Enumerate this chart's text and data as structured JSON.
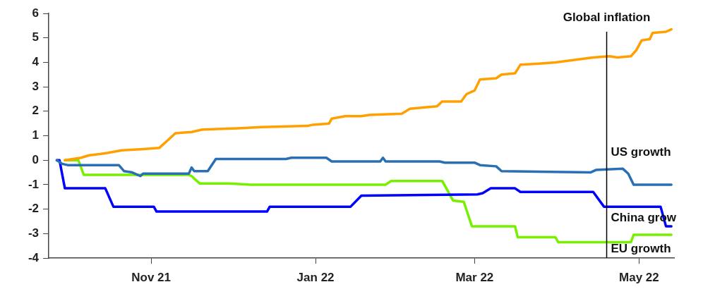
{
  "chart_data": {
    "type": "line",
    "xlim": [
      "2021-09-24",
      "2022-05-14"
    ],
    "ylim": [
      -4,
      6
    ],
    "yticks": [
      -4,
      -3,
      -2,
      -1,
      0,
      1,
      2,
      3,
      4,
      5,
      6
    ],
    "xticks": [
      {
        "value": "2021-11-01",
        "label": "Nov 21"
      },
      {
        "value": "2022-01-01",
        "label": "Jan 22"
      },
      {
        "value": "2022-03-01",
        "label": "Mar 22"
      },
      {
        "value": "2022-05-01",
        "label": "May 22"
      }
    ],
    "grid": false,
    "legend": false,
    "marker": "none",
    "line_style": "solid",
    "ref_lines": [
      {
        "axis": "x",
        "value": "2022-04-19",
        "color": "#000000"
      }
    ],
    "series": [
      {
        "name": "Global inflation",
        "color": "#ffa000",
        "x": [
          "2021-09-30",
          "2021-10-06",
          "2021-10-09",
          "2021-10-13",
          "2021-10-16",
          "2021-10-21",
          "2021-10-29",
          "2021-11-04",
          "2021-11-07",
          "2021-11-10",
          "2021-11-16",
          "2021-11-20",
          "2021-12-03",
          "2021-12-12",
          "2021-12-29",
          "2021-12-31",
          "2022-01-06",
          "2022-01-07",
          "2022-01-12",
          "2022-01-18",
          "2022-01-21",
          "2022-02-02",
          "2022-02-05",
          "2022-02-15",
          "2022-02-17",
          "2022-02-24",
          "2022-02-26",
          "2022-03-01",
          "2022-03-03",
          "2022-03-09",
          "2022-03-11",
          "2022-03-16",
          "2022-03-18",
          "2022-03-25",
          "2022-03-31",
          "2022-04-07",
          "2022-04-14",
          "2022-04-20",
          "2022-04-23",
          "2022-04-28",
          "2022-04-30",
          "2022-05-02",
          "2022-05-05",
          "2022-05-06",
          "2022-05-11",
          "2022-05-13"
        ],
        "values": [
          0,
          0.1,
          0.2,
          0.25,
          0.3,
          0.4,
          0.45,
          0.5,
          0.8,
          1.1,
          1.15,
          1.25,
          1.3,
          1.35,
          1.4,
          1.45,
          1.5,
          1.7,
          1.8,
          1.8,
          1.85,
          1.9,
          2.1,
          2.2,
          2.4,
          2.4,
          2.7,
          2.85,
          3.3,
          3.35,
          3.5,
          3.55,
          3.9,
          3.95,
          4.0,
          4.1,
          4.2,
          4.25,
          4.2,
          4.25,
          4.5,
          4.9,
          4.95,
          5.2,
          5.25,
          5.35
        ]
      },
      {
        "name": "US growth",
        "color": "#2a6eb4",
        "x": [
          "2021-09-27",
          "2021-09-29",
          "2021-10-01",
          "2021-10-20",
          "2021-10-22",
          "2021-10-25",
          "2021-10-28",
          "2021-10-29",
          "2021-11-15",
          "2021-11-16",
          "2021-11-17",
          "2021-11-22",
          "2021-11-25",
          "2021-12-21",
          "2021-12-23",
          "2022-01-05",
          "2022-01-07",
          "2022-01-25",
          "2022-01-26",
          "2022-01-27",
          "2022-02-16",
          "2022-02-18",
          "2022-03-01",
          "2022-03-03",
          "2022-03-09",
          "2022-03-11",
          "2022-04-13",
          "2022-04-15",
          "2022-04-25",
          "2022-04-27",
          "2022-04-29",
          "2022-05-13"
        ],
        "values": [
          0,
          -0.15,
          -0.2,
          -0.2,
          -0.45,
          -0.5,
          -0.65,
          -0.55,
          -0.55,
          -0.3,
          -0.45,
          -0.45,
          0.05,
          0.05,
          0.1,
          0.1,
          -0.05,
          -0.05,
          0.1,
          -0.05,
          -0.05,
          -0.1,
          -0.1,
          -0.2,
          -0.25,
          -0.45,
          -0.5,
          -0.4,
          -0.35,
          -0.55,
          -1.0,
          -1.0
        ]
      },
      {
        "name": "China grow",
        "color": "#0000ff",
        "x": [
          "2021-09-27",
          "2021-09-28",
          "2021-09-30",
          "2021-10-15",
          "2021-10-18",
          "2021-11-02",
          "2021-11-03",
          "2021-12-14",
          "2021-12-15",
          "2022-01-14",
          "2022-01-18",
          "2022-03-02",
          "2022-03-04",
          "2022-03-07",
          "2022-03-16",
          "2022-03-18",
          "2022-04-14",
          "2022-04-18",
          "2022-05-09",
          "2022-05-11",
          "2022-05-13"
        ],
        "values": [
          0,
          0,
          -1.15,
          -1.15,
          -1.9,
          -1.9,
          -2.1,
          -2.1,
          -1.9,
          -1.9,
          -1.45,
          -1.4,
          -1.35,
          -1.15,
          -1.15,
          -1.3,
          -1.3,
          -1.9,
          -1.9,
          -2.7,
          -2.7
        ]
      },
      {
        "name": "EU growth",
        "color": "#77f000",
        "x": [
          "2021-09-30",
          "2021-10-05",
          "2021-10-07",
          "2021-11-15",
          "2021-11-16",
          "2021-11-19",
          "2021-11-30",
          "2021-12-08",
          "2022-01-27",
          "2022-01-29",
          "2022-02-17",
          "2022-02-21",
          "2022-02-25",
          "2022-02-28",
          "2022-03-16",
          "2022-03-17",
          "2022-03-31",
          "2022-04-01",
          "2022-04-28",
          "2022-04-29",
          "2022-05-13"
        ],
        "values": [
          0,
          0,
          -0.6,
          -0.6,
          -0.65,
          -0.95,
          -0.95,
          -1.0,
          -1.0,
          -0.85,
          -0.85,
          -1.65,
          -1.7,
          -2.7,
          -2.7,
          -3.15,
          -3.15,
          -3.35,
          -3.35,
          -3.05,
          -3.05
        ]
      }
    ]
  }
}
